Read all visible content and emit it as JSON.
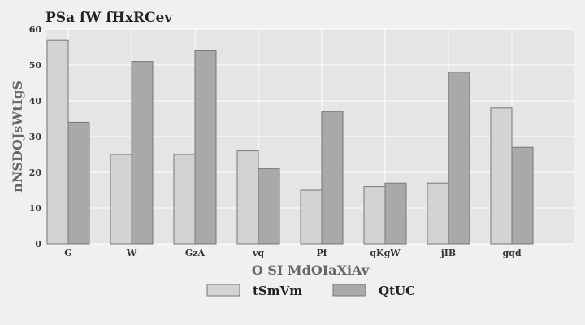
{
  "chart_data": {
    "type": "bar",
    "title": "PSa fW fHxRCev",
    "xlabel": "O SI MdOIaXiAv",
    "ylabel": "nNSDOJsWtIgS",
    "categories": [
      "G",
      "W",
      "GzA",
      "vq",
      "Pf",
      "qKgW",
      "jIB",
      "gqd"
    ],
    "ylim": [
      0,
      60
    ],
    "yticks": [
      0,
      10,
      20,
      30,
      40,
      50,
      60
    ],
    "grid": true,
    "legend_position": "bottom",
    "series": [
      {
        "name": "tSmVm",
        "color": "#d3d3d3",
        "values": [
          57,
          25,
          25,
          26,
          15,
          16,
          17,
          38
        ]
      },
      {
        "name": "QtUC",
        "color": "#a9a9a9",
        "values": [
          34,
          51,
          54,
          21,
          37,
          17,
          48,
          27
        ]
      }
    ]
  }
}
